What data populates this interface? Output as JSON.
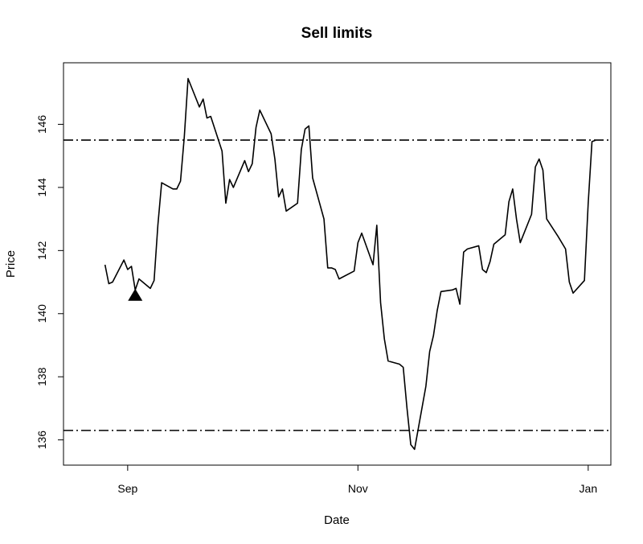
{
  "chart_data": {
    "type": "line",
    "title": "Sell limits",
    "xlabel": "Date",
    "ylabel": "Price",
    "ylim": [
      135.2,
      147.95
    ],
    "xlim": [
      "2023-08-15",
      "2024-01-07"
    ],
    "y_ticks": [
      136,
      138,
      140,
      142,
      144,
      146
    ],
    "x_ticks": [
      {
        "date": "2023-09-01",
        "label": "Sep"
      },
      {
        "date": "2023-11-01",
        "label": "Nov"
      },
      {
        "date": "2024-01-01",
        "label": "Jan"
      }
    ],
    "grid": false,
    "legend": "none",
    "series": [
      {
        "type": "line",
        "color": "#000000",
        "points": [
          [
            "2023-08-26",
            141.55
          ],
          [
            "2023-08-27",
            140.95
          ],
          [
            "2023-08-28",
            141.0
          ],
          [
            "2023-08-31",
            141.7
          ],
          [
            "2023-09-01",
            141.4
          ],
          [
            "2023-09-02",
            141.5
          ],
          [
            "2023-09-03",
            140.75
          ],
          [
            "2023-09-04",
            141.1
          ],
          [
            "2023-09-07",
            140.8
          ],
          [
            "2023-09-08",
            141.05
          ],
          [
            "2023-09-09",
            142.8
          ],
          [
            "2023-09-10",
            144.15
          ],
          [
            "2023-09-13",
            143.95
          ],
          [
            "2023-09-14",
            143.95
          ],
          [
            "2023-09-15",
            144.2
          ],
          [
            "2023-09-16",
            145.6
          ],
          [
            "2023-09-17",
            147.45
          ],
          [
            "2023-09-20",
            146.55
          ],
          [
            "2023-09-21",
            146.8
          ],
          [
            "2023-09-22",
            146.2
          ],
          [
            "2023-09-23",
            146.25
          ],
          [
            "2023-09-26",
            145.15
          ],
          [
            "2023-09-27",
            143.5
          ],
          [
            "2023-09-28",
            144.25
          ],
          [
            "2023-09-29",
            144.0
          ],
          [
            "2023-10-02",
            144.85
          ],
          [
            "2023-10-03",
            144.5
          ],
          [
            "2023-10-04",
            144.75
          ],
          [
            "2023-10-05",
            145.9
          ],
          [
            "2023-10-06",
            146.45
          ],
          [
            "2023-10-09",
            145.7
          ],
          [
            "2023-10-10",
            144.9
          ],
          [
            "2023-10-11",
            143.7
          ],
          [
            "2023-10-12",
            143.95
          ],
          [
            "2023-10-13",
            143.25
          ],
          [
            "2023-10-16",
            143.5
          ],
          [
            "2023-10-17",
            145.2
          ],
          [
            "2023-10-18",
            145.85
          ],
          [
            "2023-10-19",
            145.95
          ],
          [
            "2023-10-20",
            144.3
          ],
          [
            "2023-10-23",
            143.0
          ],
          [
            "2023-10-24",
            141.45
          ],
          [
            "2023-10-25",
            141.45
          ],
          [
            "2023-10-26",
            141.4
          ],
          [
            "2023-10-27",
            141.1
          ],
          [
            "2023-10-31",
            141.35
          ],
          [
            "2023-11-01",
            142.25
          ],
          [
            "2023-11-02",
            142.55
          ],
          [
            "2023-11-05",
            141.55
          ],
          [
            "2023-11-06",
            142.8
          ],
          [
            "2023-11-07",
            140.35
          ],
          [
            "2023-11-08",
            139.2
          ],
          [
            "2023-11-09",
            138.5
          ],
          [
            "2023-11-12",
            138.4
          ],
          [
            "2023-11-13",
            138.3
          ],
          [
            "2023-11-14",
            137.0
          ],
          [
            "2023-11-15",
            135.85
          ],
          [
            "2023-11-16",
            135.7
          ],
          [
            "2023-11-19",
            137.7
          ],
          [
            "2023-11-20",
            138.8
          ],
          [
            "2023-11-21",
            139.3
          ],
          [
            "2023-11-22",
            140.1
          ],
          [
            "2023-11-23",
            140.7
          ],
          [
            "2023-11-26",
            140.75
          ],
          [
            "2023-11-27",
            140.8
          ],
          [
            "2023-11-28",
            140.3
          ],
          [
            "2023-11-29",
            141.95
          ],
          [
            "2023-11-30",
            142.05
          ],
          [
            "2023-12-03",
            142.15
          ],
          [
            "2023-12-04",
            141.4
          ],
          [
            "2023-12-05",
            141.3
          ],
          [
            "2023-12-06",
            141.65
          ],
          [
            "2023-12-07",
            142.2
          ],
          [
            "2023-12-10",
            142.5
          ],
          [
            "2023-12-11",
            143.55
          ],
          [
            "2023-12-12",
            143.95
          ],
          [
            "2023-12-13",
            143.0
          ],
          [
            "2023-12-14",
            142.25
          ],
          [
            "2023-12-17",
            143.15
          ],
          [
            "2023-12-18",
            144.65
          ],
          [
            "2023-12-19",
            144.9
          ],
          [
            "2023-12-20",
            144.55
          ],
          [
            "2023-12-21",
            143.0
          ],
          [
            "2023-12-24",
            142.45
          ],
          [
            "2023-12-26",
            142.05
          ],
          [
            "2023-12-27",
            141.0
          ],
          [
            "2023-12-28",
            140.65
          ],
          [
            "2023-12-31",
            141.05
          ],
          [
            "2024-01-01",
            143.5
          ],
          [
            "2024-01-02",
            145.45
          ],
          [
            "2024-01-03",
            145.5
          ]
        ]
      },
      {
        "type": "hline",
        "style": "dot-dash",
        "color": "#000000",
        "y": 145.5
      },
      {
        "type": "hline",
        "style": "dot-dash",
        "color": "#000000",
        "y": 136.3
      },
      {
        "type": "marker",
        "shape": "filled-triangle-up",
        "color": "#000000",
        "points": [
          [
            "2023-09-03",
            140.6
          ]
        ]
      }
    ]
  }
}
